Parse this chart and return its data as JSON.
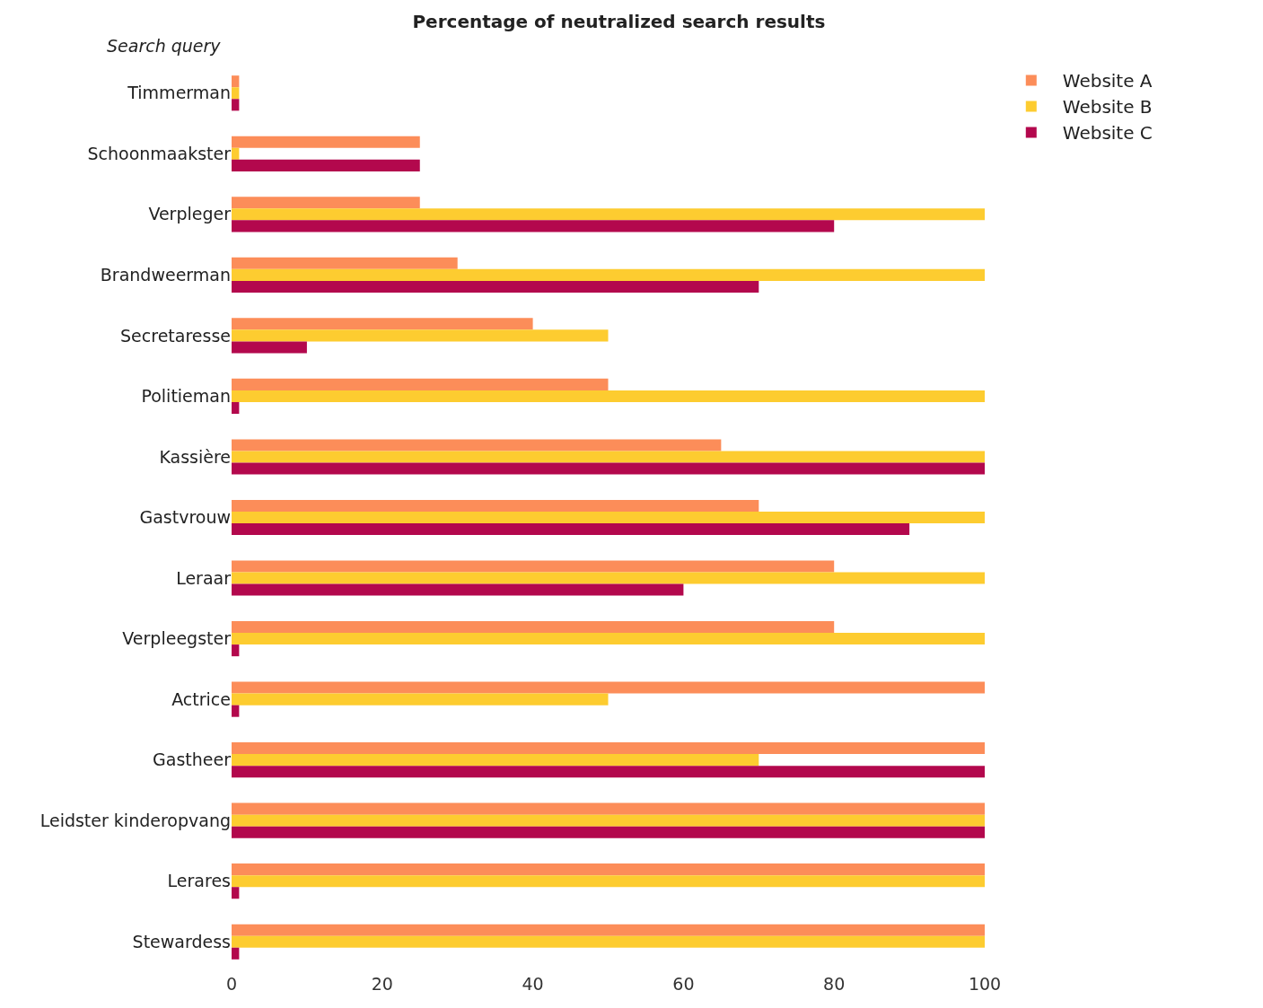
{
  "chart_data": {
    "type": "bar",
    "orientation": "horizontal",
    "title": "Percentage of neutralized search results",
    "ylabel": "Search query",
    "categories": [
      "Timmerman",
      "Schoonmaakster",
      "Verpleger",
      "Brandweerman",
      "Secretaresse",
      "Politieman",
      "Kassière",
      "Gastvrouw",
      "Leraar",
      "Verpleegster",
      "Actrice",
      "Gastheer",
      "Leidster kinderopvang",
      "Lerares",
      "Stewardess"
    ],
    "series": [
      {
        "name": "Website A",
        "color": "#fc8d59",
        "values": [
          1,
          25,
          25,
          30,
          40,
          50,
          65,
          70,
          80,
          80,
          100,
          100,
          100,
          100,
          100
        ]
      },
      {
        "name": "Website B",
        "color": "#fdcc30",
        "values": [
          1,
          1,
          100,
          100,
          50,
          100,
          100,
          100,
          100,
          100,
          50,
          70,
          100,
          100,
          100
        ]
      },
      {
        "name": "Website C",
        "color": "#b3084d",
        "values": [
          1,
          25,
          80,
          70,
          10,
          1,
          100,
          90,
          60,
          1,
          1,
          100,
          100,
          1,
          1
        ]
      }
    ],
    "xlim": [
      0,
      100
    ],
    "xticks": [
      0,
      20,
      40,
      60,
      80,
      100
    ],
    "grid": false,
    "legend": "top right"
  }
}
